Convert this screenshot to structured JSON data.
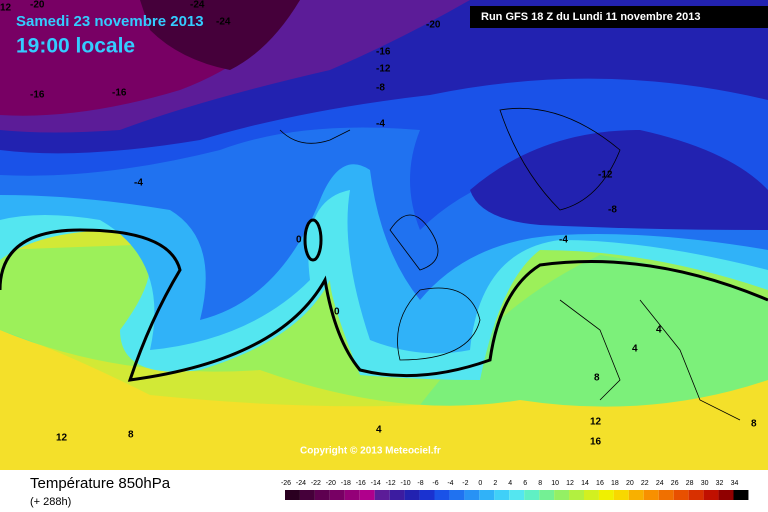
{
  "header": {
    "date": "Samedi 23 novembre 2013",
    "time": "19:00 locale",
    "run": "Run GFS 18 Z du Lundi 11 novembre 2013"
  },
  "copyright": "Copyright © 2013 Meteociel.fr",
  "footer": {
    "title": "Température 850hPa",
    "lead": "(+ 288h)"
  },
  "scale": {
    "ticks": [
      -26,
      -24,
      -22,
      -20,
      -18,
      -16,
      -14,
      -12,
      -10,
      -8,
      -6,
      -4,
      -2,
      0,
      2,
      4,
      6,
      8,
      10,
      12,
      14,
      16,
      18,
      20,
      22,
      24,
      26,
      28,
      30,
      32,
      34
    ],
    "colors": [
      "#2a0020",
      "#45003a",
      "#5e0050",
      "#780064",
      "#940078",
      "#b0008c",
      "#5c1c98",
      "#3c1ca0",
      "#2222b0",
      "#1a32d0",
      "#1a52e8",
      "#2072f0",
      "#2892f5",
      "#30b2f8",
      "#40d0f8",
      "#54e6f0",
      "#60f0c4",
      "#74f094",
      "#94f064",
      "#b2f040",
      "#d2f020",
      "#f0f000",
      "#f8d800",
      "#f8b000",
      "#f89000",
      "#f07000",
      "#e85000",
      "#d83000",
      "#c01000",
      "#900000",
      "#000000"
    ]
  },
  "contours": [
    12,
    -20,
    -24,
    -24,
    -20,
    -16,
    -16,
    -16,
    -12,
    -8,
    -4,
    -4,
    -12,
    -8,
    -4,
    0,
    0,
    4,
    4,
    8,
    12,
    16,
    4,
    8,
    12,
    8
  ]
}
